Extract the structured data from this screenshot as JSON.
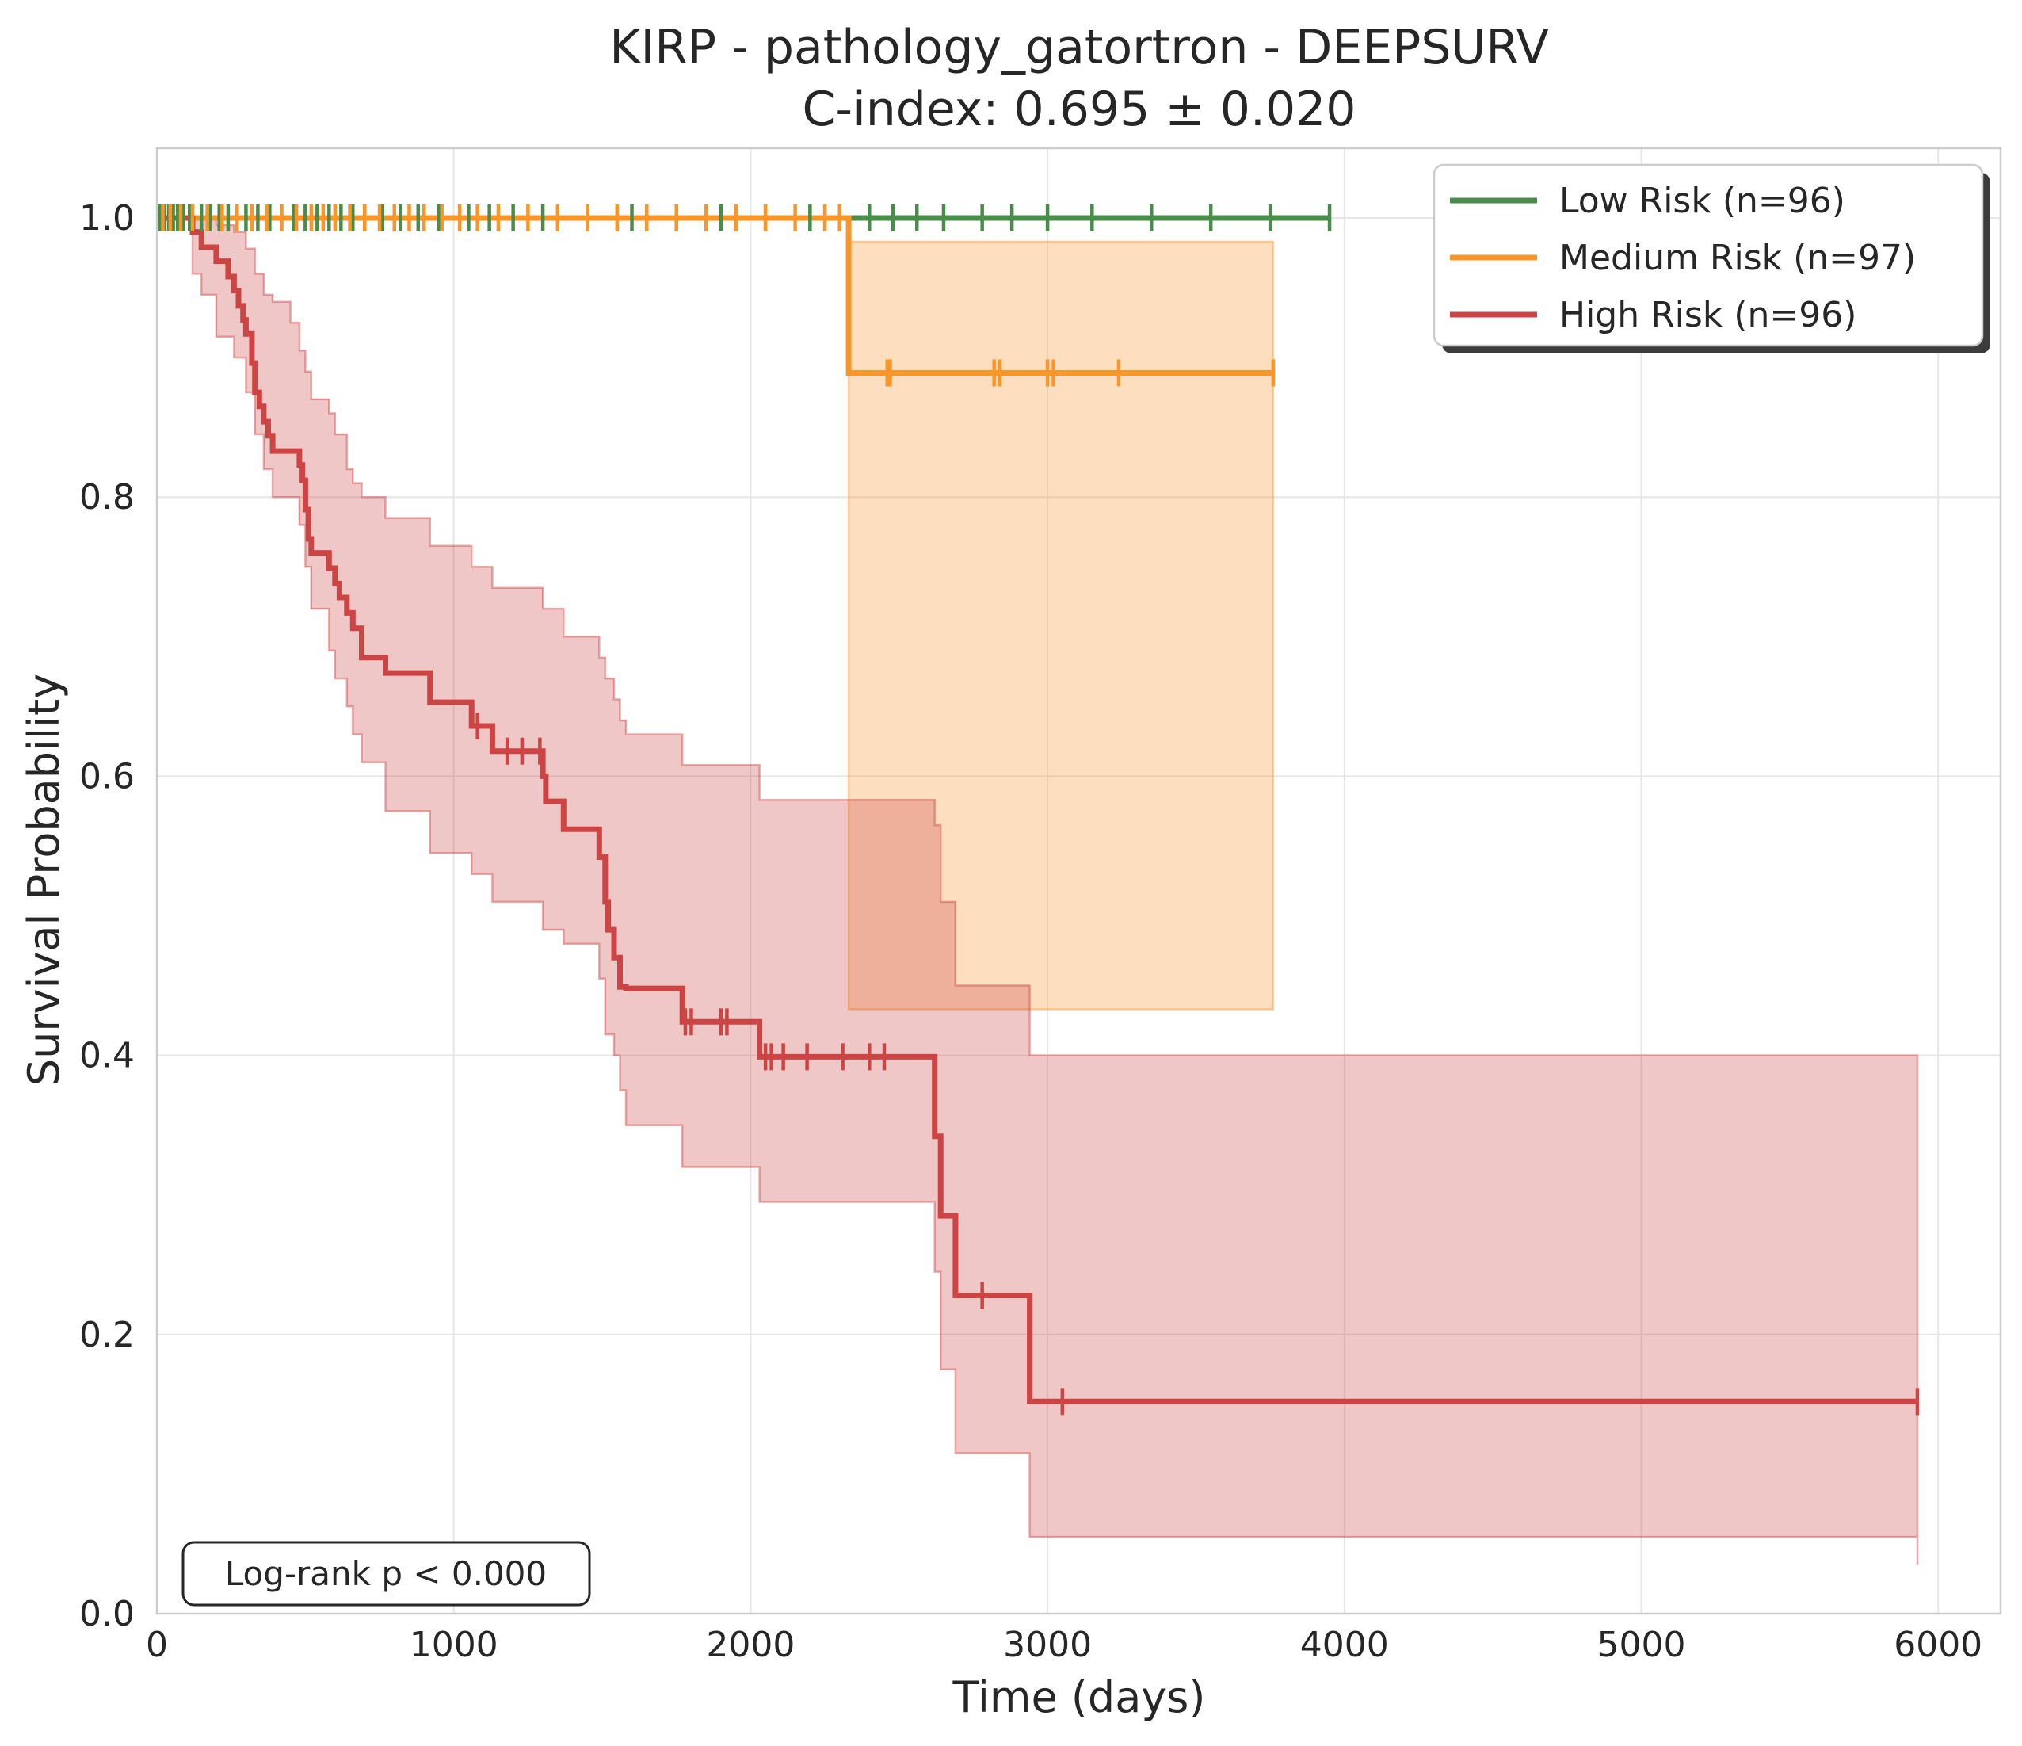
{
  "chart_data": {
    "type": "line",
    "title": "KIRP - pathology_gatortron - DEEPSURV",
    "subtitle": "C-index: 0.695 ± 0.020",
    "xlabel": "Time (days)",
    "ylabel": "Survival Probability",
    "xlim": [
      0,
      6200
    ],
    "ylim": [
      0,
      1.05
    ],
    "x_ticks": [
      0,
      1000,
      2000,
      3000,
      4000,
      5000,
      6000
    ],
    "y_ticks": [
      0.0,
      0.2,
      0.4,
      0.6,
      0.8,
      1.0
    ],
    "x_tick_labels": [
      "0",
      "1000",
      "2000",
      "3000",
      "4000",
      "5000",
      "6000"
    ],
    "y_tick_labels": [
      "0.0",
      "0.2",
      "0.4",
      "0.6",
      "0.8",
      "1.0"
    ],
    "grid": true,
    "legend_position": "top-right",
    "annotation": "Log-rank p < 0.000",
    "series": [
      {
        "name": "Low Risk (n=96)",
        "color": "#4a8c4a",
        "steps": [
          [
            0,
            1.0
          ],
          [
            3950,
            1.0
          ]
        ],
        "censor_times": [
          10,
          25,
          40,
          55,
          70,
          90,
          110,
          150,
          180,
          210,
          240,
          270,
          300,
          340,
          380,
          420,
          460,
          500,
          540,
          580,
          620,
          660,
          700,
          760,
          820,
          880,
          950,
          1050,
          1120,
          1200,
          1300,
          1450,
          1600,
          1750,
          1900,
          2050,
          2200,
          2300,
          2400,
          2480,
          2560,
          2650,
          2780,
          2880,
          3000,
          3150,
          3350,
          3550,
          3750,
          3950
        ]
      },
      {
        "name": "Medium Risk (n=97)",
        "color": "#f7962a",
        "steps": [
          [
            0,
            1.0
          ],
          [
            2330,
            1.0
          ],
          [
            2330,
            0.889
          ],
          [
            3760,
            0.889
          ]
        ],
        "ci_band": [
          [
            2330,
            0.433,
            0.983
          ],
          [
            3760,
            0.433,
            0.983
          ]
        ],
        "censor_times": [
          20,
          45,
          80,
          120,
          170,
          220,
          270,
          320,
          370,
          420,
          470,
          520,
          560,
          600,
          650,
          700,
          750,
          800,
          850,
          900,
          960,
          1020,
          1080,
          1150,
          1250,
          1350,
          1450,
          1550,
          1650,
          1750,
          1850,
          1950,
          2050,
          2150,
          2250,
          2300
        ],
        "censor_points": [
          [
            2460,
            0.889
          ],
          [
            2470,
            0.889
          ],
          [
            2820,
            0.889
          ],
          [
            2840,
            0.889
          ],
          [
            3000,
            0.889
          ],
          [
            3020,
            0.889
          ],
          [
            3240,
            0.889
          ],
          [
            3760,
            0.889
          ]
        ]
      },
      {
        "name": "High Risk (n=96)",
        "color": "#cc4444",
        "steps": [
          [
            0,
            1.0
          ],
          [
            120,
            1.0
          ],
          [
            120,
            0.99
          ],
          [
            150,
            0.99
          ],
          [
            150,
            0.979
          ],
          [
            200,
            0.979
          ],
          [
            200,
            0.969
          ],
          [
            240,
            0.969
          ],
          [
            240,
            0.958
          ],
          [
            260,
            0.958
          ],
          [
            260,
            0.948
          ],
          [
            275,
            0.948
          ],
          [
            275,
            0.937
          ],
          [
            290,
            0.937
          ],
          [
            290,
            0.927
          ],
          [
            300,
            0.927
          ],
          [
            300,
            0.917
          ],
          [
            320,
            0.917
          ],
          [
            320,
            0.896
          ],
          [
            330,
            0.896
          ],
          [
            330,
            0.875
          ],
          [
            345,
            0.875
          ],
          [
            345,
            0.865
          ],
          [
            360,
            0.865
          ],
          [
            360,
            0.854
          ],
          [
            375,
            0.854
          ],
          [
            375,
            0.844
          ],
          [
            390,
            0.844
          ],
          [
            390,
            0.833
          ],
          [
            480,
            0.833
          ],
          [
            480,
            0.823
          ],
          [
            490,
            0.823
          ],
          [
            490,
            0.812
          ],
          [
            500,
            0.812
          ],
          [
            500,
            0.791
          ],
          [
            510,
            0.791
          ],
          [
            510,
            0.77
          ],
          [
            520,
            0.77
          ],
          [
            520,
            0.76
          ],
          [
            580,
            0.76
          ],
          [
            580,
            0.749
          ],
          [
            600,
            0.749
          ],
          [
            600,
            0.738
          ],
          [
            615,
            0.738
          ],
          [
            615,
            0.728
          ],
          [
            640,
            0.728
          ],
          [
            640,
            0.717
          ],
          [
            660,
            0.717
          ],
          [
            660,
            0.706
          ],
          [
            690,
            0.706
          ],
          [
            690,
            0.685
          ],
          [
            770,
            0.685
          ],
          [
            770,
            0.674
          ],
          [
            920,
            0.674
          ],
          [
            920,
            0.653
          ],
          [
            1060,
            0.653
          ],
          [
            1060,
            0.636
          ],
          [
            1130,
            0.636
          ],
          [
            1130,
            0.618
          ],
          [
            1300,
            0.618
          ],
          [
            1300,
            0.6
          ],
          [
            1310,
            0.6
          ],
          [
            1310,
            0.582
          ],
          [
            1370,
            0.582
          ],
          [
            1370,
            0.562
          ],
          [
            1490,
            0.562
          ],
          [
            1490,
            0.542
          ],
          [
            1510,
            0.542
          ],
          [
            1510,
            0.51
          ],
          [
            1520,
            0.51
          ],
          [
            1520,
            0.49
          ],
          [
            1540,
            0.49
          ],
          [
            1540,
            0.47
          ],
          [
            1560,
            0.47
          ],
          [
            1560,
            0.449
          ],
          [
            1580,
            0.449
          ],
          [
            1580,
            0.448
          ],
          [
            1770,
            0.448
          ],
          [
            1770,
            0.424
          ],
          [
            2030,
            0.424
          ],
          [
            2030,
            0.399
          ],
          [
            2620,
            0.399
          ],
          [
            2620,
            0.342
          ],
          [
            2640,
            0.342
          ],
          [
            2640,
            0.285
          ],
          [
            2690,
            0.285
          ],
          [
            2690,
            0.228
          ],
          [
            2940,
            0.228
          ],
          [
            2940,
            0.152
          ],
          [
            5930,
            0.152
          ]
        ],
        "ci_band": [
          [
            0,
            1.0,
            1.0
          ],
          [
            120,
            0.96,
            1.0
          ],
          [
            150,
            0.945,
            1.0
          ],
          [
            200,
            0.915,
            0.995
          ],
          [
            260,
            0.9,
            0.99
          ],
          [
            300,
            0.875,
            0.978
          ],
          [
            330,
            0.845,
            0.96
          ],
          [
            360,
            0.82,
            0.945
          ],
          [
            390,
            0.8,
            0.94
          ],
          [
            450,
            0.8,
            0.925
          ],
          [
            480,
            0.78,
            0.905
          ],
          [
            500,
            0.75,
            0.89
          ],
          [
            520,
            0.72,
            0.87
          ],
          [
            580,
            0.69,
            0.86
          ],
          [
            600,
            0.67,
            0.845
          ],
          [
            640,
            0.65,
            0.82
          ],
          [
            660,
            0.63,
            0.81
          ],
          [
            690,
            0.61,
            0.8
          ],
          [
            770,
            0.575,
            0.785
          ],
          [
            920,
            0.545,
            0.765
          ],
          [
            1060,
            0.53,
            0.75
          ],
          [
            1130,
            0.51,
            0.735
          ],
          [
            1300,
            0.49,
            0.72
          ],
          [
            1370,
            0.48,
            0.7
          ],
          [
            1490,
            0.455,
            0.685
          ],
          [
            1510,
            0.415,
            0.67
          ],
          [
            1540,
            0.4,
            0.655
          ],
          [
            1560,
            0.375,
            0.64
          ],
          [
            1580,
            0.35,
            0.63
          ],
          [
            1770,
            0.32,
            0.608
          ],
          [
            2030,
            0.295,
            0.583
          ],
          [
            2620,
            0.245,
            0.565
          ],
          [
            2640,
            0.175,
            0.51
          ],
          [
            2690,
            0.115,
            0.45
          ],
          [
            2940,
            0.055,
            0.4
          ],
          [
            5930,
            0.035,
            0.345
          ]
        ],
        "censor_points": [
          [
            1080,
            0.636
          ],
          [
            1180,
            0.618
          ],
          [
            1230,
            0.618
          ],
          [
            1290,
            0.618
          ],
          [
            1780,
            0.424
          ],
          [
            1800,
            0.424
          ],
          [
            1900,
            0.424
          ],
          [
            1920,
            0.424
          ],
          [
            2050,
            0.399
          ],
          [
            2070,
            0.399
          ],
          [
            2110,
            0.399
          ],
          [
            2190,
            0.399
          ],
          [
            2310,
            0.399
          ],
          [
            2400,
            0.399
          ],
          [
            2450,
            0.399
          ],
          [
            2780,
            0.228
          ],
          [
            3050,
            0.152
          ],
          [
            5930,
            0.152
          ]
        ]
      }
    ]
  }
}
